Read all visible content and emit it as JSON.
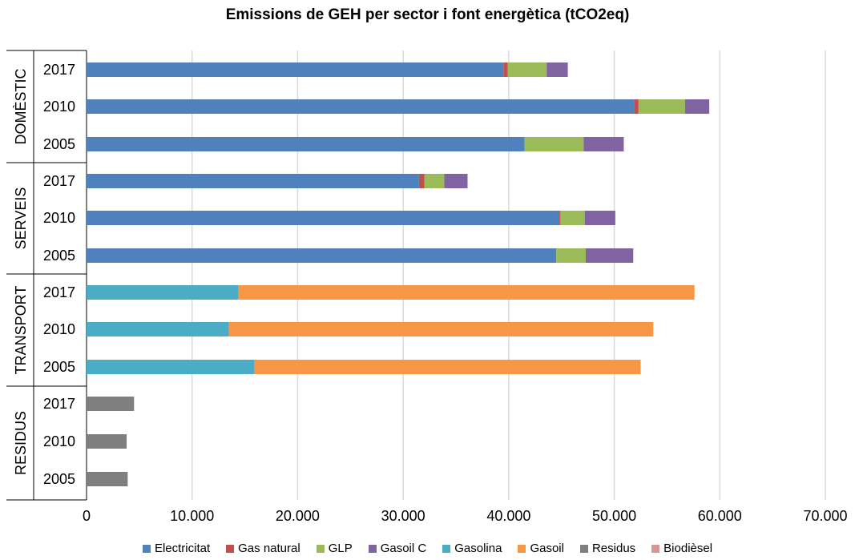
{
  "chart_data": {
    "type": "bar",
    "orientation": "horizontal",
    "stacked": true,
    "title": "Emissions de GEH per sector i font energètica (tCO2eq)",
    "xlabel": "",
    "ylabel": "",
    "xlim": [
      0,
      70000
    ],
    "x_ticks": [
      "0",
      "10.000",
      "20.000",
      "30.000",
      "40.000",
      "50.000",
      "60.000",
      "70.000"
    ],
    "grid": true,
    "legend_position": "bottom",
    "groups": [
      {
        "name": "DOMÈSTIC",
        "years": [
          "2017",
          "2010",
          "2005"
        ]
      },
      {
        "name": "SERVEIS",
        "years": [
          "2017",
          "2010",
          "2005"
        ]
      },
      {
        "name": "TRANSPORT",
        "years": [
          "2017",
          "2010",
          "2005"
        ]
      },
      {
        "name": "RESIDUS",
        "years": [
          "2017",
          "2010",
          "2005"
        ]
      }
    ],
    "series": [
      {
        "name": "Electricitat",
        "color": "#4F81BD",
        "values": [
          39500,
          51900,
          41500,
          31500,
          44800,
          44500,
          0,
          0,
          0,
          0,
          0,
          0
        ]
      },
      {
        "name": "Gas natural",
        "color": "#C0504D",
        "values": [
          400,
          400,
          0,
          500,
          100,
          0,
          0,
          0,
          0,
          0,
          0,
          0
        ]
      },
      {
        "name": "GLP",
        "color": "#9BBB59",
        "values": [
          3700,
          4400,
          5600,
          1900,
          2300,
          2800,
          0,
          0,
          0,
          0,
          0,
          0
        ]
      },
      {
        "name": "Gasoil C",
        "color": "#8064A2",
        "values": [
          2000,
          2300,
          3800,
          2200,
          2900,
          4500,
          0,
          0,
          0,
          0,
          0,
          0
        ]
      },
      {
        "name": "Gasolina",
        "color": "#4BACC6",
        "values": [
          0,
          0,
          0,
          0,
          0,
          0,
          14400,
          13500,
          15900,
          0,
          0,
          0
        ]
      },
      {
        "name": "Gasoil",
        "color": "#F79646",
        "values": [
          0,
          0,
          0,
          0,
          0,
          0,
          43200,
          40200,
          36600,
          0,
          0,
          0
        ]
      },
      {
        "name": "Residus",
        "color": "#7F7F7F",
        "values": [
          0,
          0,
          0,
          0,
          0,
          0,
          0,
          0,
          0,
          4500,
          3800,
          3900
        ]
      },
      {
        "name": "Biodièsel",
        "color": "#D99694",
        "values": [
          0,
          0,
          0,
          0,
          0,
          0,
          0,
          0,
          0,
          0,
          0,
          0
        ]
      }
    ]
  }
}
